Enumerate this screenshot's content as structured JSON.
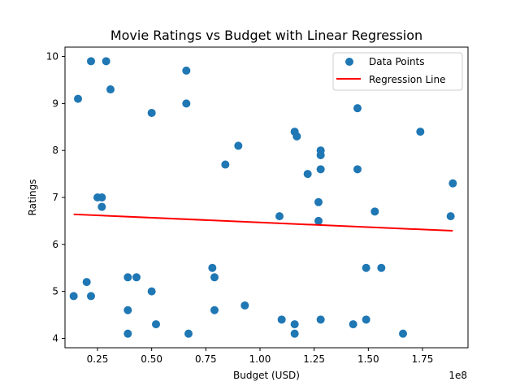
{
  "chart_data": {
    "type": "scatter",
    "title": "Movie Ratings vs Budget with Linear Regression",
    "xlabel": "Budget (USD)",
    "ylabel": "Ratings",
    "x_offset_text": "1e8",
    "xlim": [
      0.1,
      1.96
    ],
    "ylim": [
      3.8,
      10.2
    ],
    "x_ticks": [
      0.25,
      0.5,
      0.75,
      1.0,
      1.25,
      1.5,
      1.75
    ],
    "x_tick_labels": [
      "0.25",
      "0.50",
      "0.75",
      "1.00",
      "1.25",
      "1.50",
      "1.75"
    ],
    "y_ticks": [
      4,
      5,
      6,
      7,
      8,
      9,
      10
    ],
    "y_tick_labels": [
      "4",
      "5",
      "6",
      "7",
      "8",
      "9",
      "10"
    ],
    "grid": false,
    "legend_position": "top-right",
    "series": [
      {
        "name": "Data Points",
        "kind": "scatter",
        "color": "#1f77b4",
        "points": [
          [
            0.22,
            9.9
          ],
          [
            0.29,
            9.9
          ],
          [
            0.16,
            9.1
          ],
          [
            0.31,
            9.3
          ],
          [
            0.66,
            9.7
          ],
          [
            0.5,
            8.8
          ],
          [
            0.66,
            9.0
          ],
          [
            1.45,
            8.9
          ],
          [
            1.74,
            8.4
          ],
          [
            1.16,
            8.4
          ],
          [
            1.17,
            8.3
          ],
          [
            0.9,
            8.1
          ],
          [
            1.28,
            8.0
          ],
          [
            1.28,
            7.9
          ],
          [
            0.84,
            7.7
          ],
          [
            1.22,
            7.5
          ],
          [
            1.28,
            7.6
          ],
          [
            1.45,
            7.6
          ],
          [
            0.25,
            7.0
          ],
          [
            0.27,
            7.0
          ],
          [
            0.27,
            6.8
          ],
          [
            1.27,
            6.9
          ],
          [
            1.89,
            7.3
          ],
          [
            1.53,
            6.7
          ],
          [
            1.09,
            6.6
          ],
          [
            1.27,
            6.5
          ],
          [
            1.88,
            6.6
          ],
          [
            0.78,
            5.5
          ],
          [
            0.79,
            5.3
          ],
          [
            0.39,
            5.3
          ],
          [
            0.43,
            5.3
          ],
          [
            0.2,
            5.2
          ],
          [
            0.5,
            5.0
          ],
          [
            0.14,
            4.9
          ],
          [
            0.22,
            4.9
          ],
          [
            1.49,
            5.5
          ],
          [
            1.56,
            5.5
          ],
          [
            0.93,
            4.7
          ],
          [
            0.39,
            4.6
          ],
          [
            0.79,
            4.6
          ],
          [
            1.1,
            4.4
          ],
          [
            1.16,
            4.3
          ],
          [
            1.28,
            4.4
          ],
          [
            1.49,
            4.4
          ],
          [
            1.43,
            4.3
          ],
          [
            0.52,
            4.3
          ],
          [
            0.39,
            4.1
          ],
          [
            0.67,
            4.1
          ],
          [
            1.16,
            4.1
          ],
          [
            1.66,
            4.1
          ]
        ]
      },
      {
        "name": "Regression Line",
        "kind": "line",
        "color": "#ff0000",
        "points": [
          [
            0.14,
            6.64
          ],
          [
            1.89,
            6.29
          ]
        ]
      }
    ]
  }
}
